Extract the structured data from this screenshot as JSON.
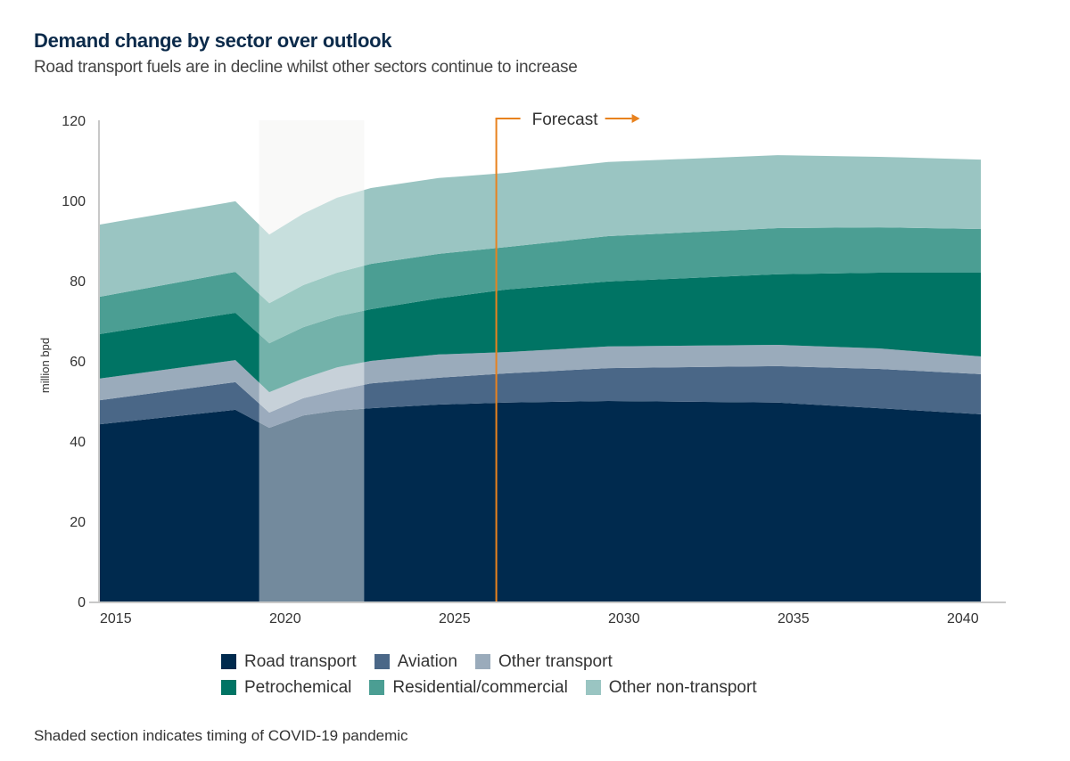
{
  "chart_data": {
    "type": "area",
    "stacked": true,
    "title": "Demand change by sector over outlook",
    "subtitle": "Road transport fuels are in decline whilst other sectors continue to increase",
    "ylabel": "million bpd",
    "xlabel": "",
    "ylim": [
      0,
      120
    ],
    "xlim": [
      2015,
      2041
    ],
    "yticks": [
      0,
      20,
      40,
      60,
      80,
      100,
      120
    ],
    "xticks": [
      2015,
      2020,
      2025,
      2030,
      2035,
      2040
    ],
    "grid": false,
    "legend_placement": "bottom",
    "x": [
      2015,
      2019,
      2020,
      2021,
      2022,
      2023,
      2025,
      2027,
      2030,
      2035,
      2038,
      2041
    ],
    "series": [
      {
        "name": "Road transport",
        "color": "#002a4e",
        "values": [
          44.2,
          47.8,
          43.3,
          46.4,
          47.6,
          48.2,
          49.1,
          49.6,
          50.0,
          49.6,
          48.2,
          46.7
        ]
      },
      {
        "name": "Aviation",
        "color": "#4a6787",
        "values": [
          6.0,
          6.9,
          3.8,
          4.3,
          5.1,
          6.2,
          6.7,
          7.3,
          8.2,
          9.1,
          9.8,
          10.0
        ]
      },
      {
        "name": "Other transport",
        "color": "#9aabbb",
        "values": [
          5.4,
          5.5,
          5.1,
          4.9,
          5.7,
          5.6,
          5.8,
          5.3,
          5.4,
          5.3,
          5.1,
          4.4
        ]
      },
      {
        "name": "Petrochemical",
        "color": "#007464",
        "values": [
          11.1,
          11.8,
          12.2,
          12.8,
          12.7,
          12.9,
          14.0,
          15.6,
          16.2,
          17.6,
          18.9,
          20.9
        ]
      },
      {
        "name": "Residential/commercial",
        "color": "#4b9e93",
        "values": [
          9.3,
          10.2,
          10.0,
          10.5,
          10.9,
          11.3,
          11.1,
          10.6,
          11.3,
          11.5,
          11.3,
          10.9
        ]
      },
      {
        "name": "Other non-transport",
        "color": "#9ac5c2",
        "values": [
          18.0,
          17.6,
          17.1,
          17.8,
          18.7,
          18.9,
          18.9,
          18.5,
          18.5,
          18.2,
          17.6,
          17.3
        ]
      }
    ],
    "annotations": {
      "forecast_label": "Forecast",
      "forecast_start_year": 2026.7,
      "forecast_color": "#e8821e",
      "shaded_period": [
        2019.7,
        2022.8
      ]
    },
    "footnote": "Shaded section indicates timing of COVID-19 pandemic"
  }
}
